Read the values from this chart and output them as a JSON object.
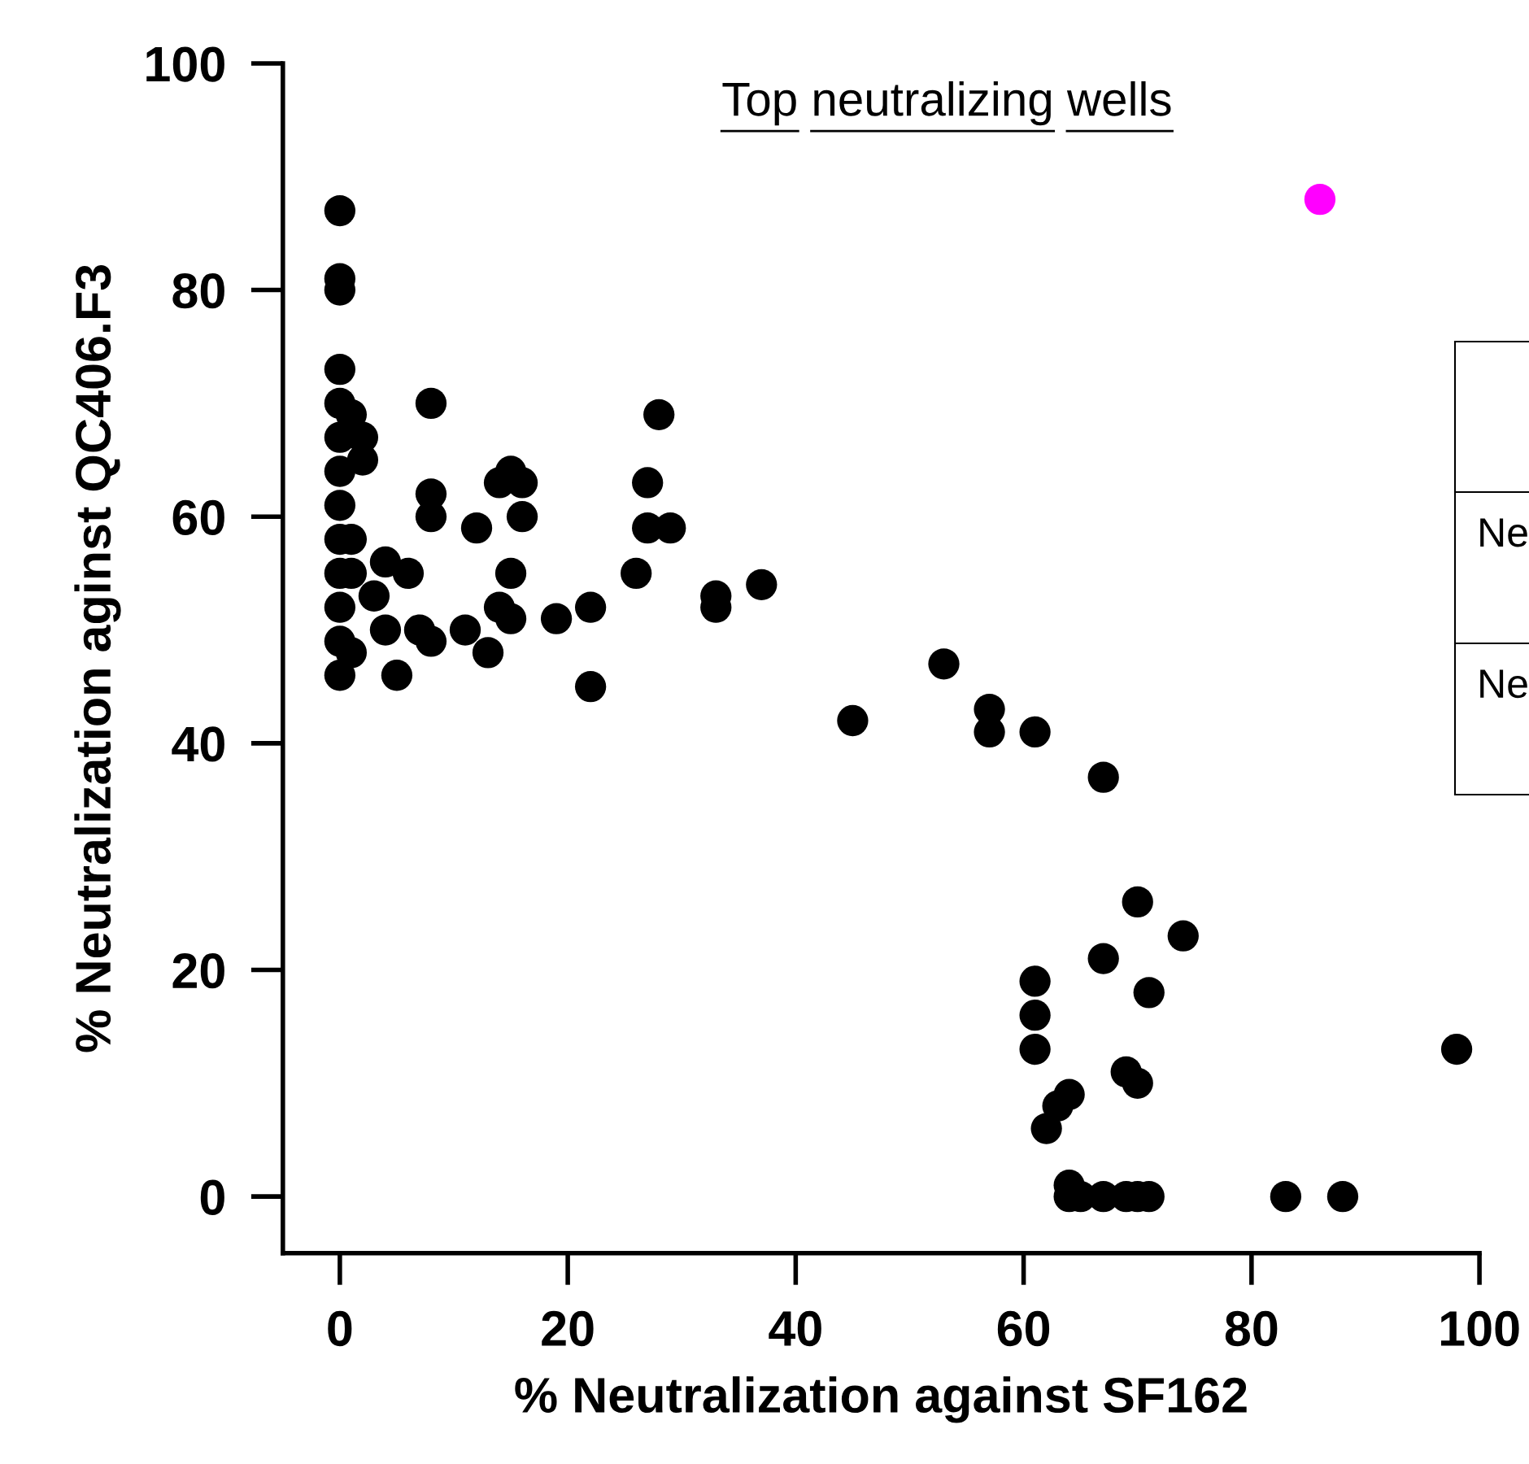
{
  "chart_data": {
    "type": "scatter",
    "title": "Top neutralizing wells",
    "xlabel": "% Neutralization against SF162",
    "ylabel": "% Neutralization aginst QC406.F3",
    "xlim": [
      -5,
      100
    ],
    "ylim": [
      -5,
      100
    ],
    "xticks": [
      0,
      20,
      40,
      60,
      80,
      100
    ],
    "yticks": [
      0,
      20,
      40,
      60,
      80,
      100
    ],
    "grid": false,
    "marker": "circle",
    "series": [
      {
        "color": "#000000",
        "x": [
          0,
          0,
          0,
          0,
          0,
          0,
          0,
          0,
          0,
          0,
          0,
          0,
          0,
          1,
          2,
          2,
          1,
          1,
          1,
          4,
          6,
          3,
          4,
          5,
          7,
          8,
          8,
          8,
          8,
          12,
          11,
          13,
          14,
          15,
          16,
          16,
          15,
          14,
          15,
          19,
          22,
          22,
          26,
          27,
          28,
          27,
          29,
          33,
          33,
          37,
          45,
          53,
          57,
          57,
          61,
          67,
          70,
          74,
          67,
          61,
          61,
          61,
          71,
          69,
          70,
          64,
          63,
          62,
          64,
          64,
          65,
          67,
          69,
          70,
          71,
          83,
          88,
          98
        ],
        "values": [
          87,
          81,
          80,
          73,
          70,
          67,
          64,
          61,
          58,
          55,
          52,
          49,
          46,
          69,
          67,
          65,
          58,
          55,
          48,
          56,
          55,
          53,
          50,
          46,
          50,
          49,
          70,
          62,
          60,
          59,
          50,
          48,
          63,
          64,
          63,
          60,
          55,
          52,
          51,
          51,
          52,
          45,
          55,
          63,
          69,
          59,
          59,
          53,
          52,
          54,
          42,
          47,
          43,
          41,
          41,
          37,
          26,
          23,
          21,
          19,
          16,
          13,
          18,
          11,
          10,
          9,
          8,
          6,
          1,
          0,
          0,
          0,
          0,
          0,
          0,
          0,
          0,
          13
        ]
      },
      {
        "color": "#ff00ff",
        "x": [
          86
        ],
        "values": [
          88
        ]
      }
    ],
    "annotations": [
      "Ne",
      "Ne"
    ]
  }
}
